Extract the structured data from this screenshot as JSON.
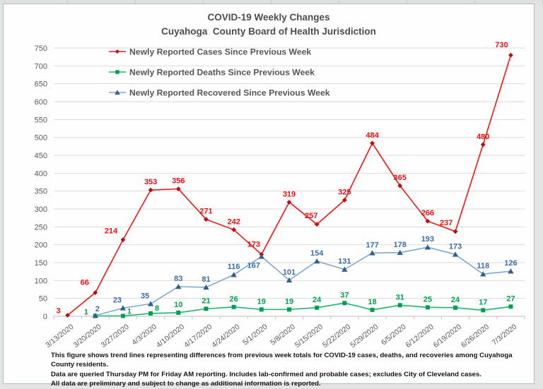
{
  "title": {
    "line1": "COVID-19 Weekly Changes",
    "line2": "Cuyahoga  County Board of Health Jurisdiction"
  },
  "footnotes": [
    "This figure shows trend  lines representing differences from previous week totals for COVID-19 cases, deaths, and recoveries among Cuyahoga County  residents.",
    "Data are queried  Thursday PM for Friday AM reporting. Includes lab-confirmed and probable  cases; excludes City of Cleveland cases.",
    "All data are preliminary and subject to change as additional information is reported."
  ],
  "colors": {
    "grid": "#dbdbdb",
    "axis": "#bfbfbf",
    "tick_label": "#595959",
    "legend_text": "#565656",
    "panel_border": "#aabfcc"
  },
  "chart_data": {
    "type": "line",
    "title": "COVID-19 Weekly Changes — Cuyahoga County Board of Health Jurisdiction",
    "categories": [
      "3/13/2020",
      "3/20/2020",
      "3/27/2020",
      "4/3/2020",
      "4/10/2020",
      "4/17/2020",
      "4/24/2020",
      "5/1/2020",
      "5/8/2020",
      "5/15/2020",
      "5/22/2020",
      "5/29/2020",
      "6/5/2020",
      "6/12/2020",
      "6/19/2020",
      "6/26/2020",
      "7/3/2020"
    ],
    "ylim": [
      0,
      750
    ],
    "ytick_step": 50,
    "yticks": [
      0,
      50,
      100,
      150,
      200,
      250,
      300,
      350,
      400,
      450,
      500,
      550,
      600,
      650,
      700,
      750
    ],
    "grid": true,
    "legend_position": "top-left-inside",
    "series": [
      {
        "key": "cases",
        "name": "Newly Reported Cases Since Previous Week",
        "marker": "diamond",
        "line_color": "#f81414",
        "marker_color": "#c00c0c",
        "label_color": "#ec0e0e",
        "values": [
          3,
          66,
          214,
          353,
          356,
          271,
          242,
          173,
          319,
          257,
          325,
          484,
          365,
          266,
          237,
          480,
          730
        ]
      },
      {
        "key": "deaths",
        "name": "Newly Reported Deaths Since Previous Week",
        "marker": "square",
        "line_color": "#1db56a",
        "marker_color": "#009e4f",
        "label_color": "#00a14e",
        "values": [
          null,
          1,
          1,
          8,
          10,
          21,
          26,
          19,
          19,
          24,
          37,
          18,
          31,
          25,
          24,
          17,
          27
        ]
      },
      {
        "key": "recovered",
        "name": "Newly Reported Recovered Since Previous Week",
        "marker": "triangle",
        "line_color": "#7fa8d0",
        "marker_color": "#31608f",
        "label_color": "#3f6da9",
        "values": [
          null,
          2,
          23,
          35,
          83,
          81,
          116,
          167,
          101,
          154,
          131,
          177,
          178,
          193,
          173,
          118,
          126
        ]
      }
    ]
  }
}
